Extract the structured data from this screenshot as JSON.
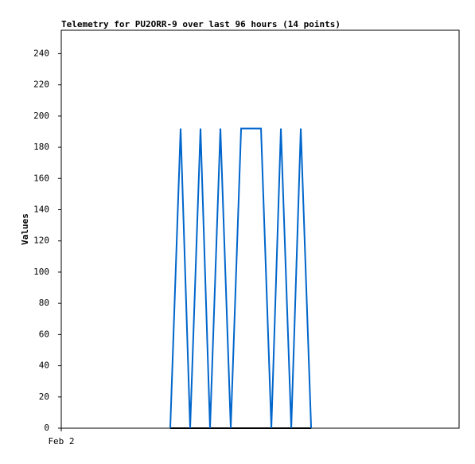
{
  "chart_data": {
    "type": "line",
    "title": "Telemetry for PU2ORR-9 over last 96 hours (14 points)",
    "y_label": "Values",
    "x": [
      26.3,
      28.8,
      31.1,
      33.6,
      35.9,
      38.4,
      40.9,
      43.4,
      48.2,
      50.7,
      53.0,
      55.5,
      57.8,
      60.3
    ],
    "series": [
      {
        "color": "#0066cc",
        "values": [
          0,
          192,
          0,
          192,
          0,
          192,
          0,
          192,
          192,
          0,
          192,
          0,
          192,
          0
        ]
      },
      {
        "color": "#000000",
        "values": [
          0,
          0,
          0,
          0,
          0,
          0,
          0,
          0,
          0,
          0,
          0,
          0,
          0,
          0
        ]
      }
    ],
    "xlim": [
      0,
      96
    ],
    "xticks": [
      {
        "value": 0,
        "label": "Feb 2"
      }
    ],
    "ylim": [
      0,
      255
    ],
    "yticks": [
      0,
      20,
      40,
      60,
      80,
      100,
      120,
      140,
      160,
      180,
      200,
      220,
      240
    ]
  }
}
